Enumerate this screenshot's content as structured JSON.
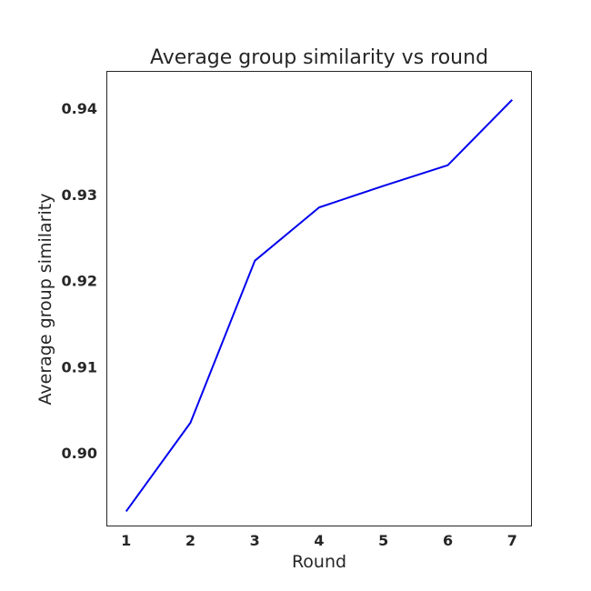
{
  "chart_data": {
    "type": "line",
    "title": "Average group similarity vs round",
    "xlabel": "Round",
    "ylabel": "Average group similarity",
    "x": [
      1,
      2,
      3,
      4,
      5,
      6,
      7
    ],
    "series": [
      {
        "values": [
          0.8932,
          0.9035,
          0.9223,
          0.9285,
          0.931,
          0.9334,
          0.941
        ],
        "color": "#0000ee"
      }
    ],
    "xticks": [
      "1",
      "2",
      "3",
      "4",
      "5",
      "6",
      "7"
    ],
    "yticks": [
      "0.90",
      "0.91",
      "0.92",
      "0.93",
      "0.94"
    ],
    "xlim": [
      0.7,
      7.3
    ],
    "ylim": [
      0.8915,
      0.9443
    ],
    "grid": false,
    "legend": "none"
  }
}
